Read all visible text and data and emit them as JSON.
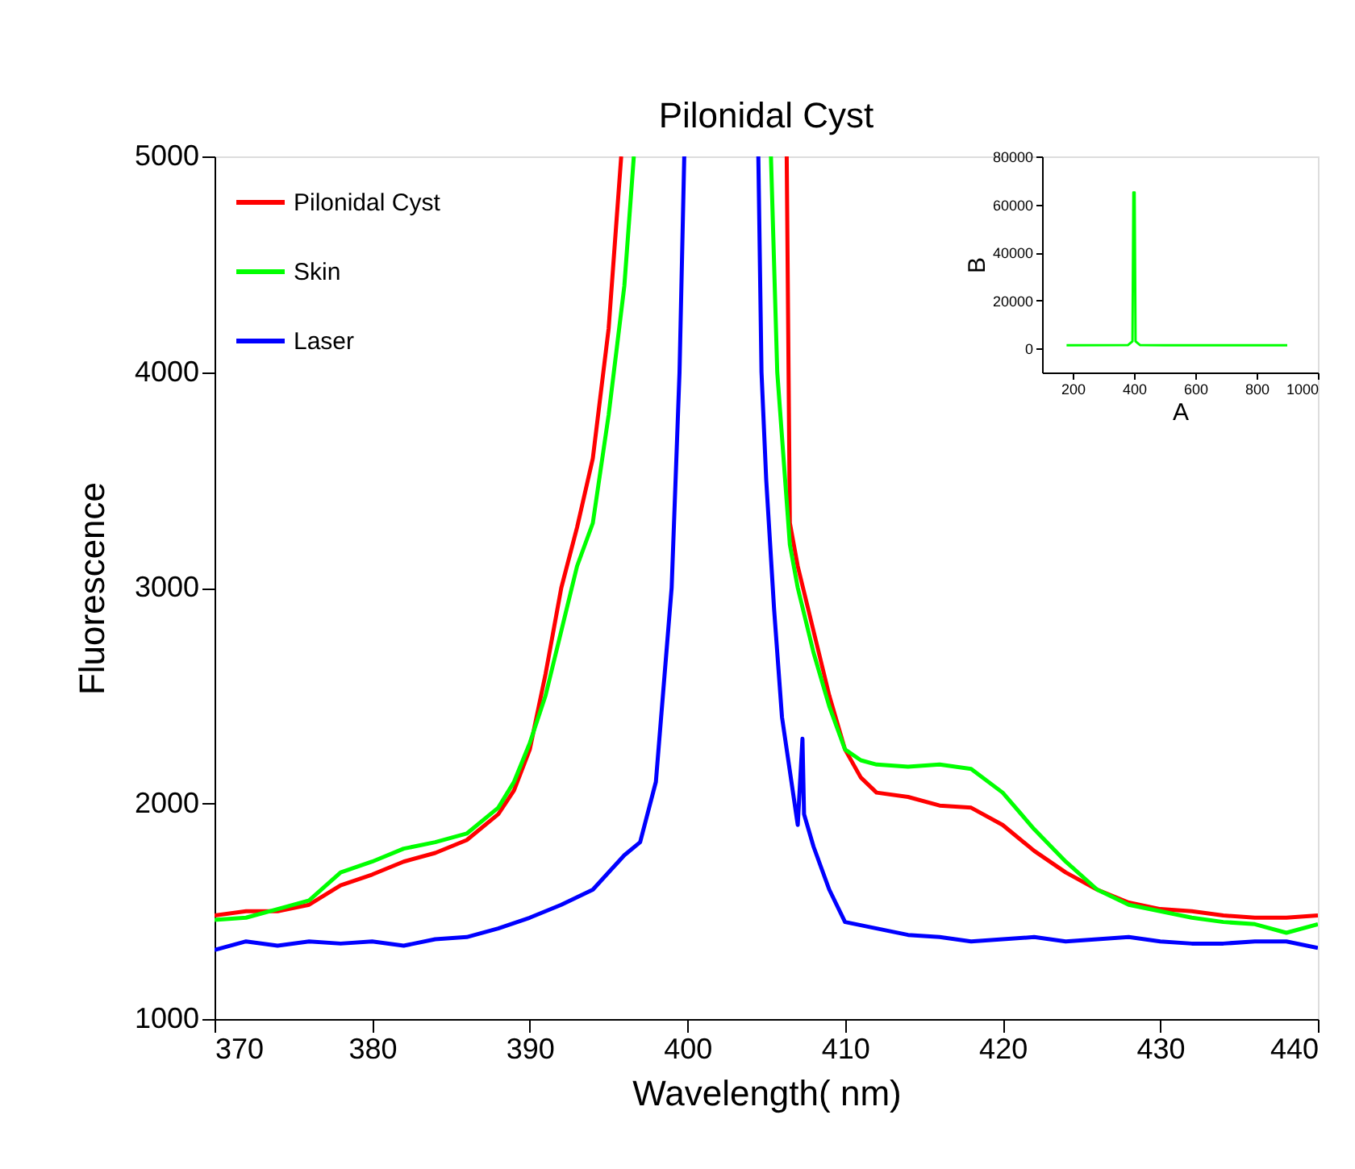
{
  "chart_data": [
    {
      "type": "line",
      "title": "Pilonidal Cyst",
      "xlabel": "Wavelength(  nm)",
      "ylabel": "Fluorescence",
      "xlim": [
        370,
        440
      ],
      "ylim": [
        1000,
        5000
      ],
      "xticks": [
        370,
        380,
        390,
        400,
        410,
        420,
        430,
        440
      ],
      "yticks": [
        1000,
        2000,
        3000,
        4000,
        5000
      ],
      "grid": false,
      "legend": "top left",
      "line_style": "solid",
      "series": [
        {
          "name": "Pilonidal Cyst",
          "color": "#ff0000",
          "x": [
            370,
            372,
            374,
            376,
            378,
            380,
            382,
            384,
            386,
            388,
            389,
            390,
            391,
            392,
            393,
            394,
            395,
            395.8,
            401,
            406.3,
            406.5,
            407,
            408,
            409,
            410,
            411,
            412,
            414,
            416,
            418,
            420,
            422,
            424,
            426,
            428,
            430,
            432,
            434,
            436,
            438,
            440
          ],
          "values": [
            1480,
            1500,
            1500,
            1530,
            1620,
            1670,
            1730,
            1770,
            1830,
            1950,
            2060,
            2250,
            2600,
            3000,
            3280,
            3600,
            4200,
            5000,
            null,
            5000,
            3300,
            3100,
            2800,
            2500,
            2250,
            2120,
            2050,
            2030,
            1990,
            1980,
            1900,
            1780,
            1680,
            1600,
            1540,
            1510,
            1500,
            1480,
            1470,
            1470,
            1480
          ]
        },
        {
          "name": "Skin",
          "color": "#00ff00",
          "x": [
            370,
            372,
            374,
            376,
            378,
            380,
            382,
            384,
            386,
            388,
            389,
            390,
            391,
            392,
            393,
            394,
            395,
            396,
            396.6,
            401,
            405.3,
            405.7,
            406.5,
            407,
            408,
            409,
            410,
            411,
            412,
            414,
            416,
            418,
            420,
            422,
            424,
            426,
            428,
            430,
            432,
            434,
            436,
            438,
            440
          ],
          "values": [
            1460,
            1470,
            1510,
            1550,
            1680,
            1730,
            1790,
            1820,
            1860,
            1980,
            2100,
            2280,
            2500,
            2800,
            3100,
            3300,
            3800,
            4400,
            5000,
            null,
            5000,
            4000,
            3200,
            3000,
            2700,
            2450,
            2250,
            2200,
            2180,
            2170,
            2180,
            2160,
            2050,
            1880,
            1730,
            1600,
            1530,
            1500,
            1470,
            1450,
            1440,
            1400,
            1440
          ]
        },
        {
          "name": "Laser",
          "color": "#0000ff",
          "x": [
            370,
            372,
            374,
            376,
            378,
            380,
            382,
            384,
            386,
            388,
            390,
            392,
            394,
            396,
            397,
            398,
            399,
            399.5,
            399.8,
            402,
            404.5,
            404.7,
            405,
            405.5,
            406,
            406.6,
            407,
            407.3,
            407.4,
            408,
            409,
            410,
            412,
            414,
            416,
            418,
            420,
            422,
            424,
            426,
            428,
            430,
            432,
            434,
            436,
            438,
            440
          ],
          "values": [
            1320,
            1360,
            1340,
            1360,
            1350,
            1360,
            1340,
            1370,
            1380,
            1420,
            1470,
            1530,
            1600,
            1760,
            1820,
            2100,
            3000,
            4000,
            5000,
            null,
            5000,
            4000,
            3500,
            2900,
            2400,
            2100,
            1900,
            2300,
            1950,
            1800,
            1600,
            1450,
            1420,
            1390,
            1380,
            1360,
            1370,
            1380,
            1360,
            1370,
            1380,
            1360,
            1350,
            1350,
            1360,
            1360,
            1330
          ]
        }
      ]
    },
    {
      "type": "line",
      "xlabel": "A",
      "ylabel": "B",
      "xlim": [
        100,
        1000
      ],
      "ylim": [
        -10000,
        80000
      ],
      "xticks": [
        200,
        400,
        600,
        800,
        1000
      ],
      "yticks": [
        0,
        20000,
        40000,
        60000,
        80000
      ],
      "grid": false,
      "legend": false,
      "line_style": "solid",
      "series": [
        {
          "color": "#00ff00",
          "x": [
            180,
            380,
            395,
            398,
            402,
            405,
            420,
            500,
            550,
            600,
            900
          ],
          "values": [
            1300,
            1400,
            3000,
            65000,
            65000,
            3000,
            1400,
            1300,
            1300,
            1300,
            1300
          ]
        }
      ]
    }
  ]
}
